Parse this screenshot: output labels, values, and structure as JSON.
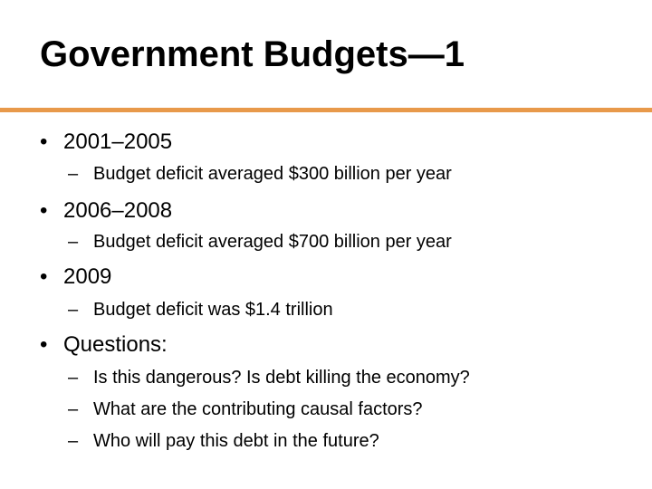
{
  "slide": {
    "title": "Government Budgets—1",
    "accent_color": "#E8994A",
    "bullet_glyph": "•",
    "dash_glyph": "–"
  },
  "bullets": [
    {
      "text": "2001–2005",
      "sub": [
        "Budget deficit averaged $300 billion per year"
      ]
    },
    {
      "text": "2006–2008",
      "sub": [
        "Budget deficit averaged $700 billion per year"
      ]
    },
    {
      "text": "2009",
      "sub": [
        "Budget deficit was $1.4 trillion"
      ]
    },
    {
      "text": "Questions:",
      "sub": [
        "Is this dangerous? Is debt killing the economy?",
        "What are the contributing causal factors?",
        "Who will pay this debt in the future?"
      ]
    }
  ]
}
